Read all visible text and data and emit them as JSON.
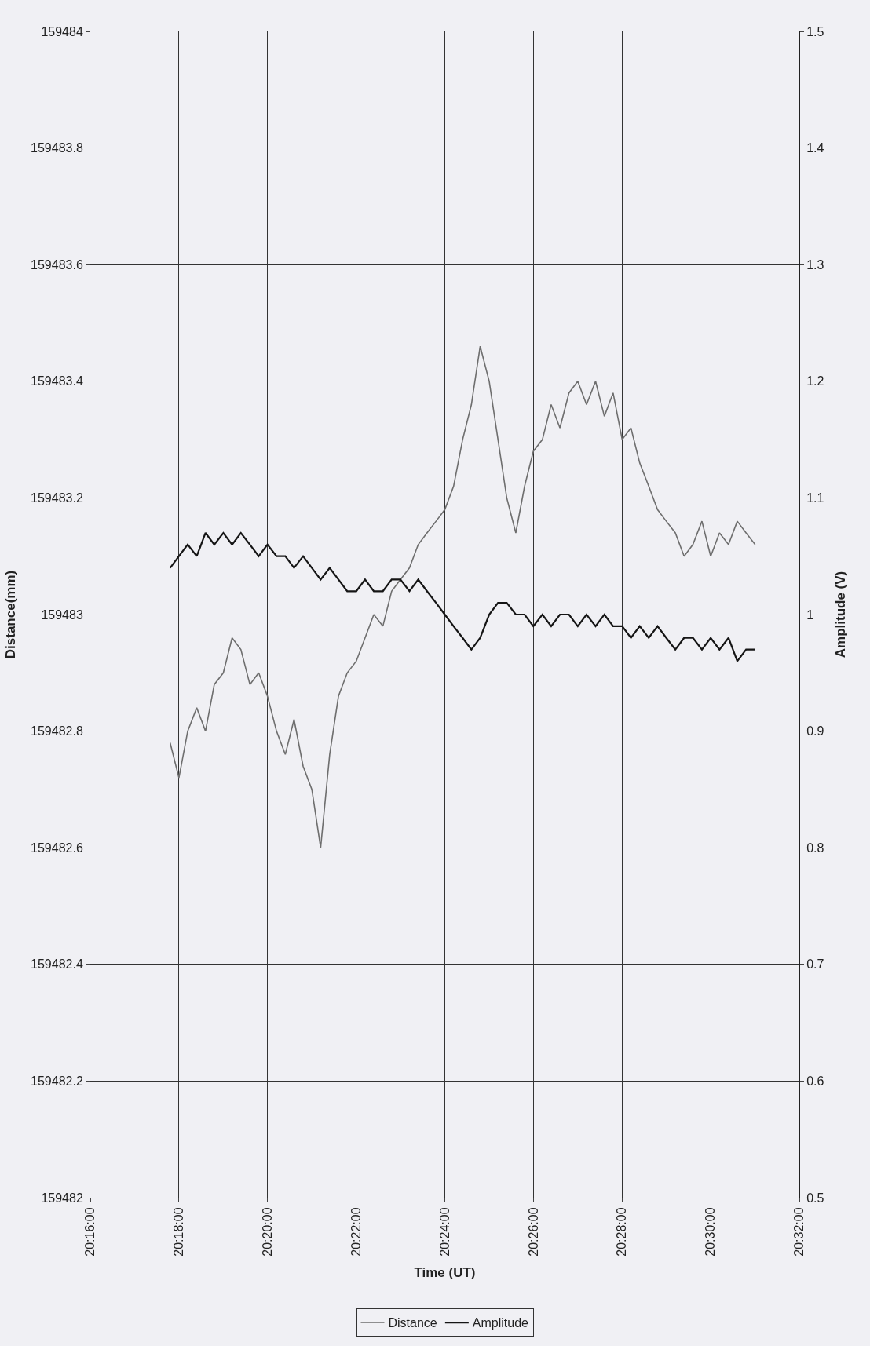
{
  "chart_data": {
    "type": "line",
    "xlabel": "Time (UT)",
    "ylabel": "Distance(mm)",
    "y2label": "Amplitude (V)",
    "x": [
      20.2967,
      20.3,
      20.3033,
      20.3067,
      20.31,
      20.3133,
      20.3167,
      20.32,
      20.3233,
      20.3267,
      20.33,
      20.3333,
      20.3367,
      20.34,
      20.3433,
      20.3467,
      20.35,
      20.3533,
      20.3567,
      20.36,
      20.3633,
      20.3667,
      20.37,
      20.3733,
      20.3767,
      20.38,
      20.3833,
      20.3867,
      20.39,
      20.3933,
      20.3967,
      20.4,
      20.4033,
      20.4067,
      20.41,
      20.4133,
      20.4167,
      20.42,
      20.4233,
      20.4267,
      20.43,
      20.4333,
      20.4367,
      20.44,
      20.4433,
      20.4467,
      20.45,
      20.4533,
      20.4567,
      20.46,
      20.4633,
      20.4667,
      20.47,
      20.4733,
      20.4767,
      20.48,
      20.4833,
      20.4867,
      20.49,
      20.4933,
      20.4967,
      20.5,
      20.5033,
      20.5067,
      20.51,
      20.5133,
      20.5167
    ],
    "series": [
      {
        "name": "Distance",
        "color": "#6e6e6e",
        "values": [
          159482.78,
          159482.72,
          159482.8,
          159482.84,
          159482.8,
          159482.88,
          159482.9,
          159482.96,
          159482.94,
          159482.88,
          159482.9,
          159482.86,
          159482.8,
          159482.76,
          159482.82,
          159482.74,
          159482.7,
          159482.6,
          159482.76,
          159482.86,
          159482.9,
          159482.92,
          159482.96,
          159483.0,
          159482.98,
          159483.04,
          159483.06,
          159483.08,
          159483.12,
          159483.14,
          159483.16,
          159483.18,
          159483.22,
          159483.3,
          159483.36,
          159483.46,
          159483.4,
          159483.3,
          159483.2,
          159483.14,
          159483.22,
          159483.28,
          159483.3,
          159483.36,
          159483.32,
          159483.38,
          159483.4,
          159483.36,
          159483.4,
          159483.34,
          159483.38,
          159483.3,
          159483.32,
          159483.26,
          159483.22,
          159483.18,
          159483.16,
          159483.14,
          159483.1,
          159483.12,
          159483.16,
          159483.1,
          159483.14,
          159483.12,
          159483.16,
          159483.14,
          159483.12
        ]
      },
      {
        "name": "Amplitude",
        "color": "#151515",
        "axis": "y2",
        "values": [
          1.04,
          1.05,
          1.06,
          1.05,
          1.07,
          1.06,
          1.07,
          1.06,
          1.07,
          1.06,
          1.05,
          1.06,
          1.05,
          1.05,
          1.04,
          1.05,
          1.04,
          1.03,
          1.04,
          1.03,
          1.02,
          1.02,
          1.03,
          1.02,
          1.02,
          1.03,
          1.03,
          1.02,
          1.03,
          1.02,
          1.01,
          1.0,
          0.99,
          0.98,
          0.97,
          0.98,
          1.0,
          1.01,
          1.01,
          1.0,
          1.0,
          0.99,
          1.0,
          0.99,
          1.0,
          1.0,
          0.99,
          1.0,
          0.99,
          1.0,
          0.99,
          0.99,
          0.98,
          0.99,
          0.98,
          0.99,
          0.98,
          0.97,
          0.98,
          0.98,
          0.97,
          0.98,
          0.97,
          0.98,
          0.96,
          0.97,
          0.97
        ]
      }
    ],
    "xlim": [
      20.26667,
      20.53333
    ],
    "xticks": [
      {
        "value": 20.26667,
        "label": "20:16:00"
      },
      {
        "value": 20.3,
        "label": "20:18:00"
      },
      {
        "value": 20.33333,
        "label": "20:20:00"
      },
      {
        "value": 20.36667,
        "label": "20:22:00"
      },
      {
        "value": 20.4,
        "label": "20:24:00"
      },
      {
        "value": 20.43333,
        "label": "20:26:00"
      },
      {
        "value": 20.46667,
        "label": "20:28:00"
      },
      {
        "value": 20.5,
        "label": "20:30:00"
      },
      {
        "value": 20.53333,
        "label": "20:32:00"
      }
    ],
    "ylim": [
      159482,
      159484
    ],
    "yticks": [
      159482,
      159482.2,
      159482.4,
      159482.6,
      159482.8,
      159483,
      159483.2,
      159483.4,
      159483.6,
      159483.8,
      159484
    ],
    "y2lim": [
      0.5,
      1.5
    ],
    "y2ticks": [
      0.5,
      0.6,
      0.7,
      0.8,
      0.9,
      1,
      1.1,
      1.2,
      1.3,
      1.4,
      1.5
    ],
    "grid": true,
    "legend": "bottom",
    "marker": "none",
    "line_style": "solid"
  }
}
